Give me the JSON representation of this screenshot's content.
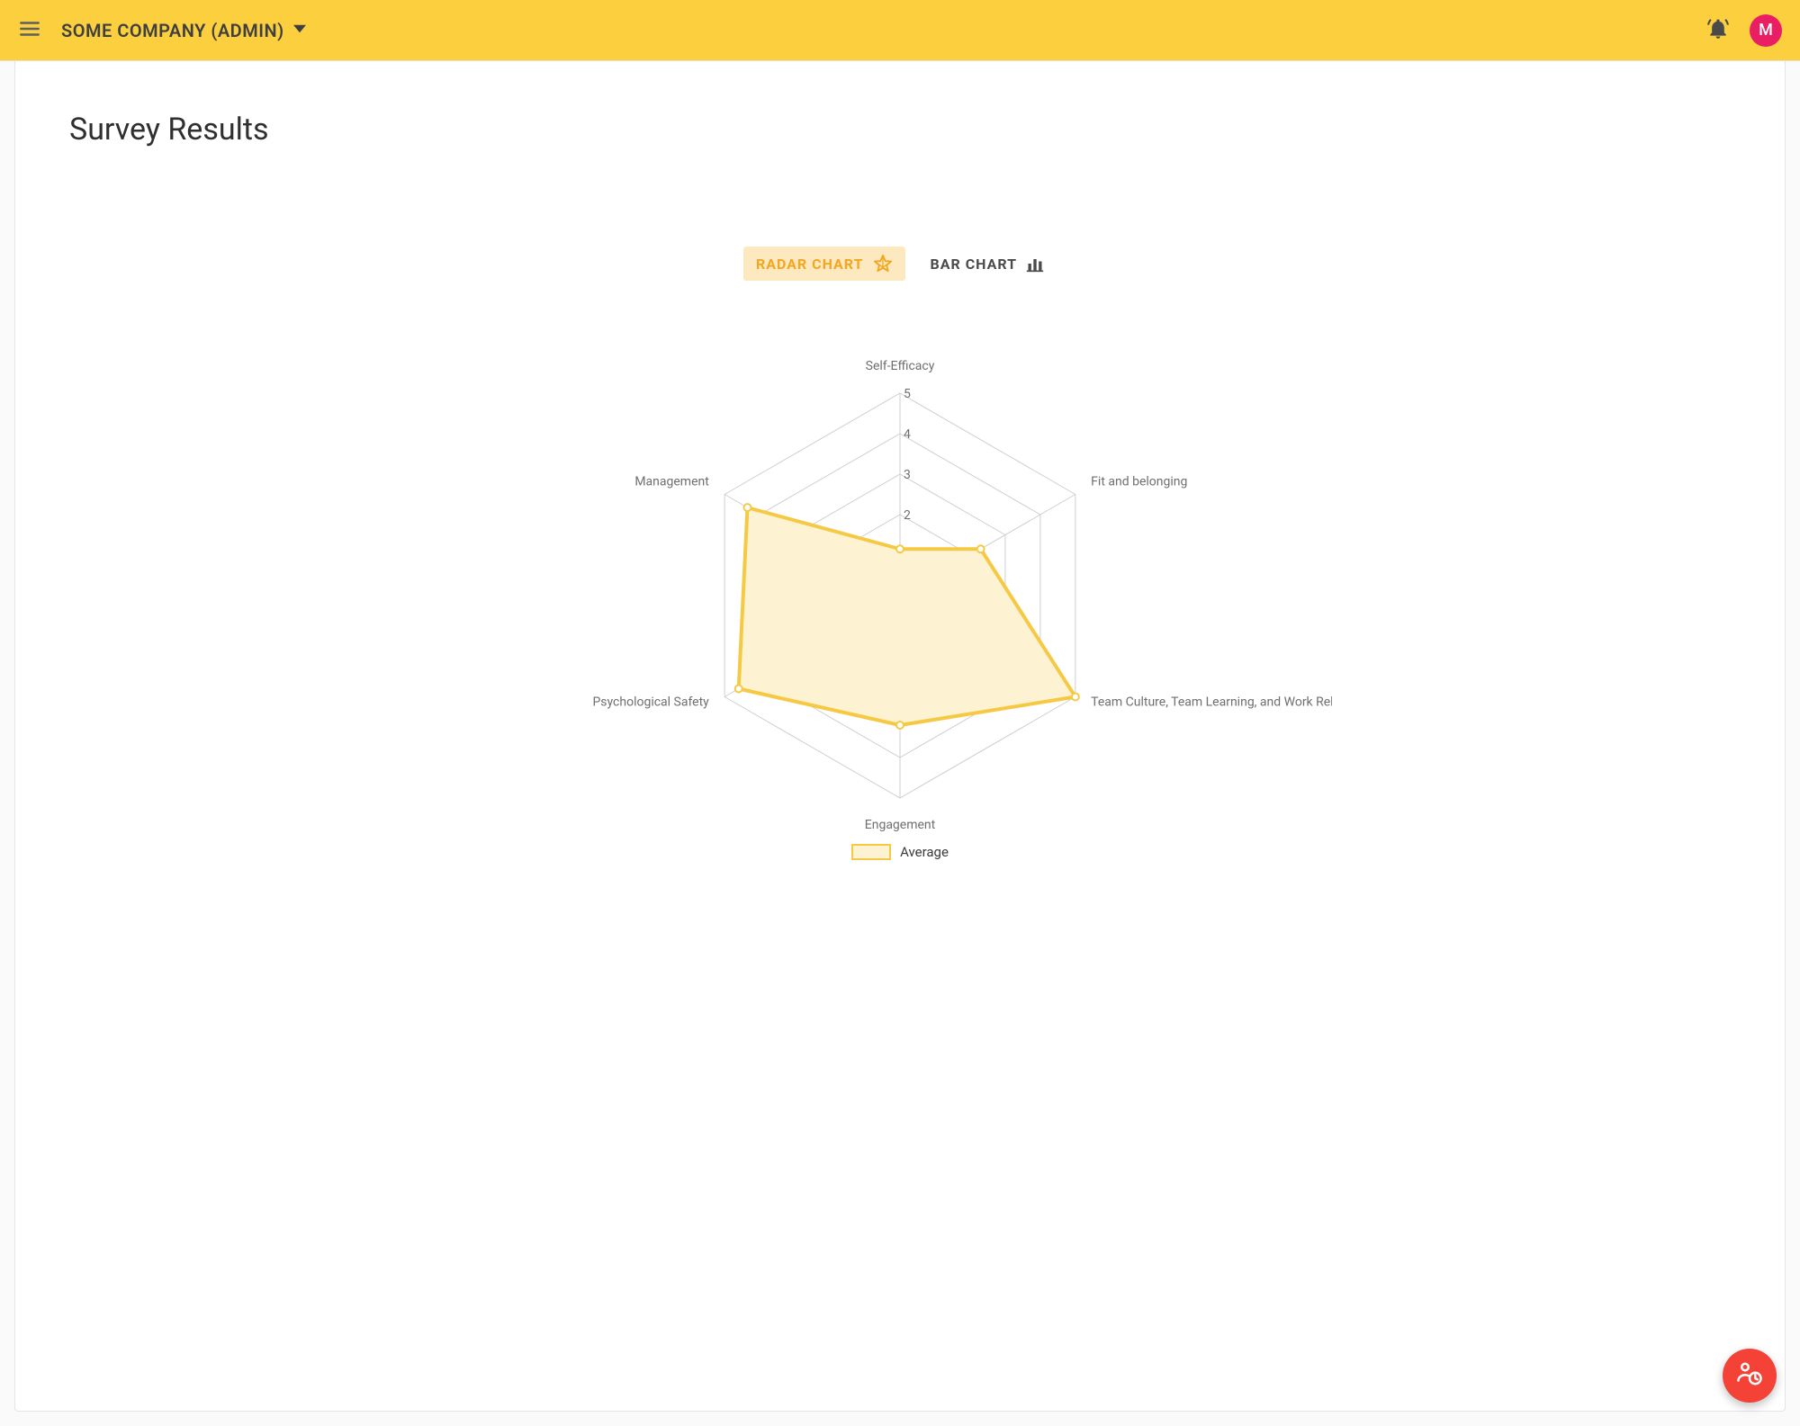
{
  "colors": {
    "topbar_bg": "#fccf3e",
    "accent": "#f3a61e",
    "tab_active_bg": "#fde9c0",
    "tab_active_text": "#f3a61e",
    "tab_inactive_text": "#4a4a4a",
    "avatar_bg": "#e91e63",
    "fab_bg": "#f44336",
    "grid": "#cfcfcf",
    "series_stroke": "#f6c944",
    "series_fill": "#fdf3d3",
    "point_fill": "#ffffff"
  },
  "header": {
    "company_label": "SOME COMPANY (ADMIN)",
    "avatar_initial": "M"
  },
  "page": {
    "title": "Survey Results"
  },
  "tabs": {
    "radar": {
      "label": "RADAR CHART",
      "active": true
    },
    "bar": {
      "label": "BAR CHART",
      "active": false
    }
  },
  "radar_chart": {
    "type": "radar",
    "max": 5,
    "rings": [
      1,
      2,
      3,
      4,
      5
    ],
    "tick_labels": [
      2,
      3,
      4,
      5
    ],
    "axes": [
      "Self-Efficacy",
      "Fit and belonging",
      "Team Culture, Team Learning, and Work Relationships",
      "Engagement",
      "Psychological Safety",
      "Management"
    ],
    "series": [
      {
        "name": "Average",
        "values": [
          1.15,
          2.3,
          5.0,
          3.2,
          4.6,
          4.35
        ]
      }
    ],
    "legend_label": "Average",
    "line_width": 4,
    "point_radius": 4,
    "label_fontsize": 14
  }
}
